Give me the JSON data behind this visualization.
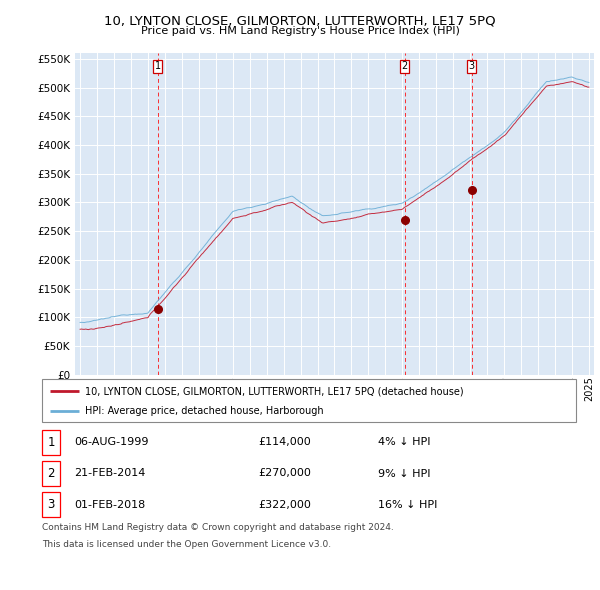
{
  "title": "10, LYNTON CLOSE, GILMORTON, LUTTERWORTH, LE17 5PQ",
  "subtitle": "Price paid vs. HM Land Registry's House Price Index (HPI)",
  "red_label": "10, LYNTON CLOSE, GILMORTON, LUTTERWORTH, LE17 5PQ (detached house)",
  "blue_label": "HPI: Average price, detached house, Harborough",
  "sales": [
    {
      "num": 1,
      "date": "06-AUG-1999",
      "price": 114000,
      "pct": "4%",
      "dir": "↓",
      "year": 1999.58
    },
    {
      "num": 2,
      "date": "21-FEB-2014",
      "price": 270000,
      "pct": "9%",
      "dir": "↓",
      "year": 2014.13
    },
    {
      "num": 3,
      "date": "01-FEB-2018",
      "price": 322000,
      "pct": "16%",
      "dir": "↓",
      "year": 2018.08
    }
  ],
  "footnote1": "Contains HM Land Registry data © Crown copyright and database right 2024.",
  "footnote2": "This data is licensed under the Open Government Licence v3.0.",
  "ylim": [
    0,
    560000
  ],
  "yticks": [
    0,
    50000,
    100000,
    150000,
    200000,
    250000,
    300000,
    350000,
    400000,
    450000,
    500000,
    550000
  ],
  "xlim_start": 1994.7,
  "xlim_end": 2025.3,
  "plot_bg": "#dce8f5"
}
